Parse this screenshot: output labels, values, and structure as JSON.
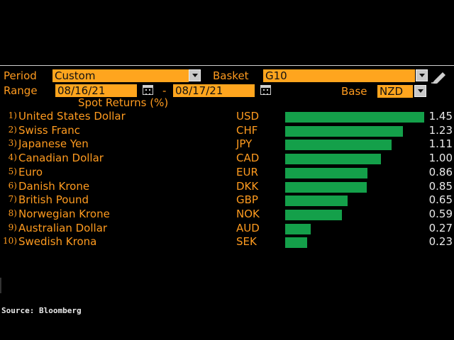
{
  "controls": {
    "period_label": "Period",
    "period_value": "Custom",
    "basket_label": "Basket",
    "basket_value": "G10",
    "range_label": "Range",
    "range_start": "08/16/21",
    "range_separator": "-",
    "range_end": "08/17/21",
    "base_label": "Base",
    "base_value": "NZD"
  },
  "chart_data": {
    "type": "bar",
    "title": "Spot Returns (%)",
    "orientation": "horizontal",
    "rows": [
      {
        "rank": "1)",
        "name": "United States Dollar",
        "code": "USD",
        "value": 1.45
      },
      {
        "rank": "2)",
        "name": "Swiss Franc",
        "code": "CHF",
        "value": 1.23
      },
      {
        "rank": "3)",
        "name": "Japanese Yen",
        "code": "JPY",
        "value": 1.11
      },
      {
        "rank": "4)",
        "name": "Canadian Dollar",
        "code": "CAD",
        "value": 1.0
      },
      {
        "rank": "5)",
        "name": "Euro",
        "code": "EUR",
        "value": 0.86
      },
      {
        "rank": "6)",
        "name": "Danish Krone",
        "code": "DKK",
        "value": 0.85
      },
      {
        "rank": "7)",
        "name": "British Pound",
        "code": "GBP",
        "value": 0.65
      },
      {
        "rank": "8)",
        "name": "Norwegian Krone",
        "code": "NOK",
        "value": 0.59
      },
      {
        "rank": "9)",
        "name": "Australian Dollar",
        "code": "AUD",
        "value": 0.27
      },
      {
        "rank": "10)",
        "name": "Swedish Krona",
        "code": "SEK",
        "value": 0.23
      }
    ],
    "value_labels": [
      "1.45",
      "1.23",
      "1.11",
      "1.00",
      "0.86",
      "0.85",
      "0.65",
      "0.59",
      "0.27",
      "0.23"
    ],
    "bar_color": "#14a04a"
  },
  "footer": {
    "source": "Source: Bloomberg"
  },
  "icons": {
    "edit": "pencil-icon",
    "date_picker": "calendar-icon",
    "dropdown": "chevron-down-icon"
  },
  "colors": {
    "label": "#ff9b1f",
    "field": "#ffa51e",
    "background": "#000000"
  }
}
